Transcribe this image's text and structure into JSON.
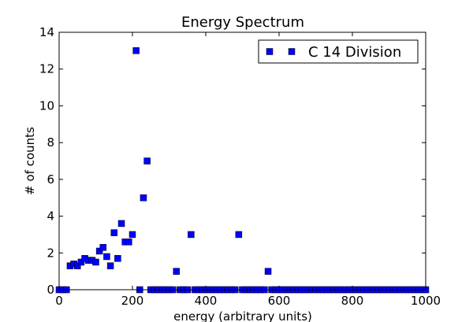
{
  "chart_data": {
    "type": "scatter",
    "title": "Energy Spectrum",
    "xlabel": "energy (arbitrary units)",
    "ylabel": "# of counts",
    "xlim": [
      0,
      1000
    ],
    "ylim": [
      0,
      14
    ],
    "xticks": [
      0,
      200,
      400,
      600,
      800,
      1000
    ],
    "yticks": [
      0,
      2,
      4,
      6,
      8,
      10,
      12,
      14
    ],
    "grid": false,
    "legend_position": "top-right",
    "marker_color": "#0000ff",
    "marker": "square",
    "series": [
      {
        "name": "C 14 Division",
        "points": [
          [
            0,
            0
          ],
          [
            10,
            0
          ],
          [
            20,
            0
          ],
          [
            30,
            1.3
          ],
          [
            40,
            1.4
          ],
          [
            50,
            1.3
          ],
          [
            60,
            1.5
          ],
          [
            70,
            1.7
          ],
          [
            80,
            1.6
          ],
          [
            90,
            1.6
          ],
          [
            100,
            1.5
          ],
          [
            110,
            2.1
          ],
          [
            120,
            2.3
          ],
          [
            130,
            1.8
          ],
          [
            140,
            1.3
          ],
          [
            150,
            3.1
          ],
          [
            160,
            1.7
          ],
          [
            170,
            3.6
          ],
          [
            180,
            2.6
          ],
          [
            190,
            2.6
          ],
          [
            200,
            3.0
          ],
          [
            210,
            13.0
          ],
          [
            220,
            0
          ],
          [
            230,
            5.0
          ],
          [
            240,
            7.0
          ],
          [
            250,
            0
          ],
          [
            260,
            0
          ],
          [
            270,
            0
          ],
          [
            280,
            0
          ],
          [
            290,
            0
          ],
          [
            300,
            0
          ],
          [
            310,
            0
          ],
          [
            320,
            1.0
          ],
          [
            330,
            0
          ],
          [
            340,
            0
          ],
          [
            350,
            0
          ],
          [
            360,
            3.0
          ],
          [
            370,
            0
          ],
          [
            380,
            0
          ],
          [
            390,
            0
          ],
          [
            400,
            0
          ],
          [
            410,
            0
          ],
          [
            420,
            0
          ],
          [
            430,
            0
          ],
          [
            440,
            0
          ],
          [
            450,
            0
          ],
          [
            460,
            0
          ],
          [
            470,
            0
          ],
          [
            480,
            0
          ],
          [
            490,
            3.0
          ],
          [
            500,
            0
          ],
          [
            510,
            0
          ],
          [
            520,
            0
          ],
          [
            530,
            0
          ],
          [
            540,
            0
          ],
          [
            550,
            0
          ],
          [
            560,
            0
          ],
          [
            570,
            1.0
          ],
          [
            580,
            0
          ],
          [
            590,
            0
          ],
          [
            600,
            0
          ],
          [
            610,
            0
          ],
          [
            620,
            0
          ],
          [
            630,
            0
          ],
          [
            640,
            0
          ],
          [
            650,
            0
          ],
          [
            660,
            0
          ],
          [
            670,
            0
          ],
          [
            680,
            0
          ],
          [
            690,
            0
          ],
          [
            700,
            0
          ],
          [
            710,
            0
          ],
          [
            720,
            0
          ],
          [
            730,
            0
          ],
          [
            740,
            0
          ],
          [
            750,
            0
          ],
          [
            760,
            0
          ],
          [
            770,
            0
          ],
          [
            780,
            0
          ],
          [
            790,
            0
          ],
          [
            800,
            0
          ],
          [
            810,
            0
          ],
          [
            820,
            0
          ],
          [
            830,
            0
          ],
          [
            840,
            0
          ],
          [
            850,
            0
          ],
          [
            860,
            0
          ],
          [
            870,
            0
          ],
          [
            880,
            0
          ],
          [
            890,
            0
          ],
          [
            900,
            0
          ],
          [
            910,
            0
          ],
          [
            920,
            0
          ],
          [
            930,
            0
          ],
          [
            940,
            0
          ],
          [
            950,
            0
          ],
          [
            960,
            0
          ],
          [
            970,
            0
          ],
          [
            980,
            0
          ],
          [
            990,
            0
          ],
          [
            1000,
            0
          ]
        ]
      }
    ]
  }
}
